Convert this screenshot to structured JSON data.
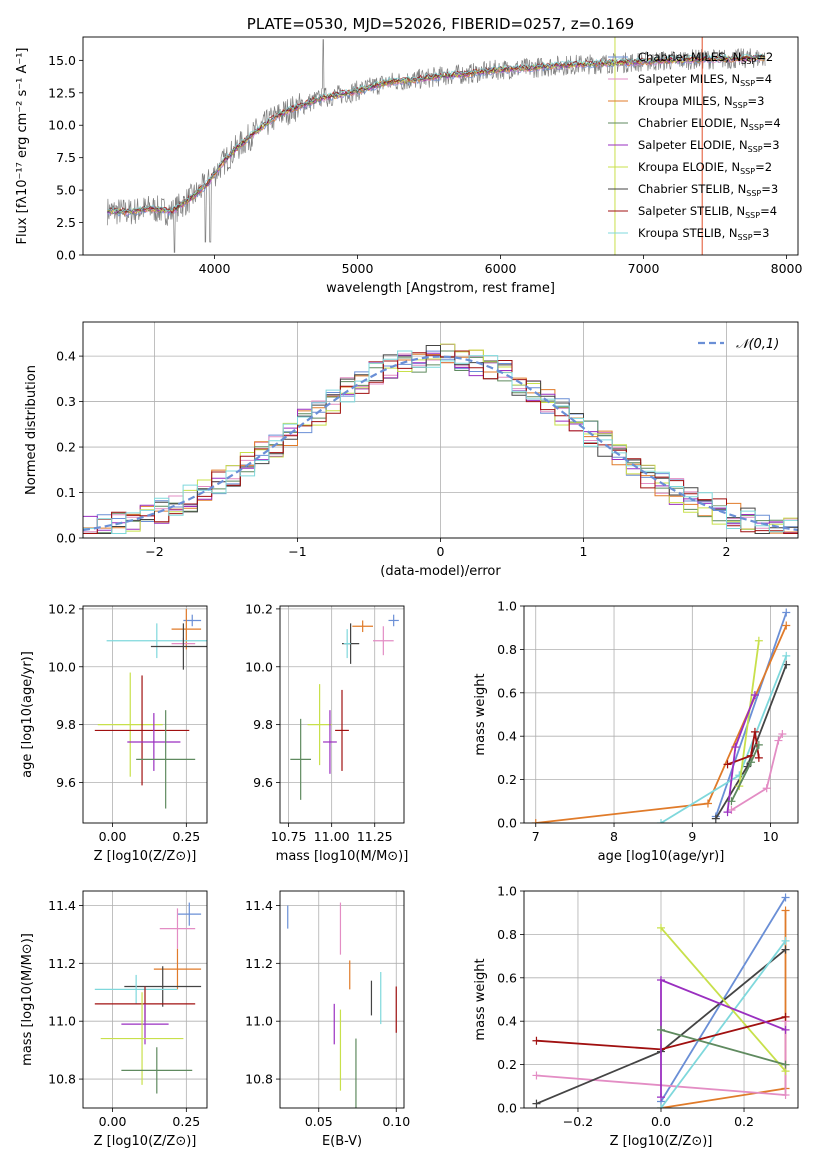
{
  "palette": [
    "#6a8fd6",
    "#e07b2a",
    "#2f9e3a",
    "#d04040",
    "#9a5fc0",
    "#8c5a48",
    "#e38dc4",
    "#808080",
    "#c8d64b",
    "#5fcad6"
  ],
  "chart_data": [
    {
      "id": "spectrum",
      "type": "line",
      "title": "PLATE=0530, MJD=52026, FIBERID=0257, z=0.169",
      "xlabel": "wavelength [Angstrom, rest frame]",
      "ylabel": "Flux [fλ10⁻¹⁷ erg cm⁻² s⁻¹ A⁻¹]",
      "xlim": [
        3080,
        8080
      ],
      "ylim": [
        0,
        16.8
      ],
      "xticks": [
        4000,
        5000,
        6000,
        7000,
        8000
      ],
      "yticks": [
        0.0,
        2.5,
        5.0,
        7.5,
        10.0,
        12.5,
        15.0
      ],
      "grid": false,
      "legend_position": "upper right",
      "legend": [
        {
          "label": "Chabrier MILES, N_SSP=2",
          "color": "#6a8fd6"
        },
        {
          "label": "Salpeter MILES, N_SSP=4",
          "color": "#e38dc4"
        },
        {
          "label": "Kroupa MILES, N_SSP=3",
          "color": "#e07b2a"
        },
        {
          "label": "Chabrier ELODIE, N_SSP=4",
          "color": "#5f8a5f"
        },
        {
          "label": "Salpeter ELODIE, N_SSP=3",
          "color": "#9a2fc0"
        },
        {
          "label": "Kroupa ELODIE, N_SSP=2",
          "color": "#c8e04b"
        },
        {
          "label": "Chabrier STELIB, N_SSP=3",
          "color": "#444444"
        },
        {
          "label": "Salpeter STELIB, N_SSP=4",
          "color": "#a01010"
        },
        {
          "label": "Kroupa STELIB, N_SSP=3",
          "color": "#7fd8dc"
        }
      ],
      "model_x": [
        3250,
        3400,
        3550,
        3700,
        3850,
        3950,
        4050,
        4150,
        4300,
        4450,
        4600,
        4750,
        4900,
        5050,
        5200,
        5400,
        5600,
        5800,
        6000,
        6200,
        6400,
        6600,
        6800,
        7000,
        7200,
        7400,
        7600,
        7850
      ],
      "model_y": [
        3.4,
        3.3,
        3.6,
        3.3,
        4.5,
        5.5,
        7.0,
        8.2,
        9.6,
        10.8,
        11.5,
        12.1,
        12.4,
        12.8,
        13.3,
        13.5,
        13.8,
        14.0,
        14.3,
        14.4,
        14.6,
        14.7,
        14.8,
        14.9,
        15.0,
        15.1,
        15.1,
        15.2
      ]
    },
    {
      "id": "residuals",
      "type": "histogram",
      "xlabel": "(data-model)/error",
      "ylabel": "Normed distribution",
      "xlim": [
        -2.5,
        2.5
      ],
      "ylim": [
        0,
        0.475
      ],
      "xticks": [
        -2,
        -1,
        0,
        1,
        2
      ],
      "yticks": [
        0.0,
        0.1,
        0.2,
        0.3,
        0.4
      ],
      "grid": true,
      "legend_position": "upper right",
      "legend": [
        {
          "label": "𝒩(0,1)",
          "color": "#6a8fd6",
          "style": "dashed"
        }
      ],
      "curve": "N(0,1)"
    },
    {
      "id": "age_vs_Z",
      "type": "errorbar",
      "xlabel": "Z [log10(Z/Z⊙)]",
      "ylabel": "age [log10(age/yr)]",
      "xlim": [
        -0.1,
        0.32
      ],
      "ylim": [
        9.46,
        10.21
      ],
      "xticks": [
        0.0,
        0.25
      ],
      "yticks": [
        9.6,
        9.8,
        10.0,
        10.2
      ],
      "grid": true,
      "points": [
        {
          "x": 0.27,
          "y": 10.16,
          "xerr": 0.03,
          "yerr": 0.02,
          "color": "#6a8fd6"
        },
        {
          "x": 0.25,
          "y": 10.13,
          "xerr": 0.05,
          "yerr": 0.07,
          "color": "#e07b2a"
        },
        {
          "x": 0.15,
          "y": 10.09,
          "xerr": 0.17,
          "yerr": 0.06,
          "color": "#7fd8dc"
        },
        {
          "x": 0.24,
          "y": 10.08,
          "xerr": 0.04,
          "yerr": 0.02,
          "color": "#e38dc4"
        },
        {
          "x": 0.24,
          "y": 10.07,
          "xerr": 0.11,
          "yerr": 0.08,
          "color": "#444444"
        },
        {
          "x": 0.06,
          "y": 9.8,
          "xerr": 0.11,
          "yerr": 0.18,
          "color": "#c8e04b"
        },
        {
          "x": 0.1,
          "y": 9.78,
          "xerr": 0.16,
          "yerr": 0.19,
          "color": "#a01010"
        },
        {
          "x": 0.14,
          "y": 9.74,
          "xerr": 0.09,
          "yerr": 0.1,
          "color": "#9a2fc0"
        },
        {
          "x": 0.18,
          "y": 9.68,
          "xerr": 0.1,
          "yerr": 0.17,
          "color": "#5f8a5f"
        }
      ]
    },
    {
      "id": "age_vs_mass",
      "type": "errorbar",
      "xlabel": "mass [log10(M/M⊙)]",
      "ylabel": "",
      "xlim": [
        10.7,
        11.42
      ],
      "ylim": [
        9.46,
        10.21
      ],
      "xticks": [
        10.75,
        11.0,
        11.25
      ],
      "yticks": [
        9.6,
        9.8,
        10.0,
        10.2
      ],
      "grid": true,
      "points": [
        {
          "x": 11.36,
          "y": 10.16,
          "xerr": 0.03,
          "yerr": 0.02,
          "color": "#6a8fd6"
        },
        {
          "x": 11.18,
          "y": 10.14,
          "xerr": 0.06,
          "yerr": 0.02,
          "color": "#e07b2a"
        },
        {
          "x": 11.3,
          "y": 10.09,
          "xerr": 0.06,
          "yerr": 0.05,
          "color": "#e38dc4"
        },
        {
          "x": 11.11,
          "y": 10.08,
          "xerr": 0.05,
          "yerr": 0.07,
          "color": "#444444"
        },
        {
          "x": 11.09,
          "y": 10.08,
          "xerr": 0.02,
          "yerr": 0.05,
          "color": "#7fd8dc"
        },
        {
          "x": 10.93,
          "y": 9.8,
          "xerr": 0.07,
          "yerr": 0.14,
          "color": "#c8e04b"
        },
        {
          "x": 11.06,
          "y": 9.78,
          "xerr": 0.04,
          "yerr": 0.14,
          "color": "#a01010"
        },
        {
          "x": 10.99,
          "y": 9.74,
          "xerr": 0.04,
          "yerr": 0.11,
          "color": "#9a2fc0"
        },
        {
          "x": 10.82,
          "y": 9.68,
          "xerr": 0.06,
          "yerr": 0.14,
          "color": "#5f8a5f"
        }
      ]
    },
    {
      "id": "weight_vs_age",
      "type": "line",
      "xlabel": "age [log10(age/yr)]",
      "ylabel": "mass weight",
      "xlim": [
        6.85,
        10.35
      ],
      "ylim": [
        0,
        1
      ],
      "xticks": [
        7,
        8,
        9,
        10
      ],
      "yticks": [
        0.0,
        0.2,
        0.4,
        0.6,
        0.8,
        1.0
      ],
      "grid": true,
      "series": [
        {
          "color": "#6a8fd6",
          "x": [
            9.3,
            10.2
          ],
          "y": [
            0.03,
            0.97
          ]
        },
        {
          "color": "#e07b2a",
          "x": [
            7.0,
            9.2,
            10.2
          ],
          "y": [
            0.0,
            0.09,
            0.91
          ]
        },
        {
          "color": "#e38dc4",
          "x": [
            9.5,
            9.95,
            10.1,
            10.15
          ],
          "y": [
            0.06,
            0.16,
            0.38,
            0.41
          ]
        },
        {
          "color": "#444444",
          "x": [
            9.3,
            9.7,
            10.2
          ],
          "y": [
            0.02,
            0.26,
            0.73
          ]
        },
        {
          "color": "#7fd8dc",
          "x": [
            8.6,
            9.6,
            10.2
          ],
          "y": [
            0.0,
            0.22,
            0.77
          ]
        },
        {
          "color": "#c8e04b",
          "x": [
            9.6,
            9.85
          ],
          "y": [
            0.17,
            0.84
          ]
        },
        {
          "color": "#a01010",
          "x": [
            9.45,
            9.75,
            9.8,
            9.85
          ],
          "y": [
            0.27,
            0.31,
            0.42,
            0.3
          ]
        },
        {
          "color": "#9a2fc0",
          "x": [
            9.45,
            9.55,
            9.8
          ],
          "y": [
            0.05,
            0.35,
            0.59
          ]
        },
        {
          "color": "#5f8a5f",
          "x": [
            9.5,
            9.75,
            9.85
          ],
          "y": [
            0.1,
            0.28,
            0.36
          ]
        }
      ]
    },
    {
      "id": "mass_vs_Z",
      "type": "errorbar",
      "xlabel": "Z [log10(Z/Z⊙)]",
      "ylabel": "mass [log10(M/M⊙)]",
      "xlim": [
        -0.1,
        0.32
      ],
      "ylim": [
        10.7,
        11.45
      ],
      "xticks": [
        0.0,
        0.25
      ],
      "yticks": [
        10.8,
        11.0,
        11.2,
        11.4
      ],
      "grid": true,
      "points": [
        {
          "x": 0.26,
          "y": 11.37,
          "xerr": 0.04,
          "yerr": 0.04,
          "color": "#6a8fd6"
        },
        {
          "x": 0.22,
          "y": 11.32,
          "xerr": 0.06,
          "yerr": 0.07,
          "color": "#e38dc4"
        },
        {
          "x": 0.22,
          "y": 11.18,
          "xerr": 0.08,
          "yerr": 0.07,
          "color": "#e07b2a"
        },
        {
          "x": 0.17,
          "y": 11.12,
          "xerr": 0.13,
          "yerr": 0.07,
          "color": "#444444"
        },
        {
          "x": 0.08,
          "y": 11.11,
          "xerr": 0.14,
          "yerr": 0.05,
          "color": "#7fd8dc"
        },
        {
          "x": 0.11,
          "y": 11.06,
          "xerr": 0.17,
          "yerr": 0.06,
          "color": "#a01010"
        },
        {
          "x": 0.11,
          "y": 10.99,
          "xerr": 0.08,
          "yerr": 0.07,
          "color": "#9a2fc0"
        },
        {
          "x": 0.1,
          "y": 10.94,
          "xerr": 0.14,
          "yerr": 0.16,
          "color": "#c8e04b"
        },
        {
          "x": 0.15,
          "y": 10.83,
          "xerr": 0.12,
          "yerr": 0.08,
          "color": "#5f8a5f"
        }
      ]
    },
    {
      "id": "mass_vs_ebv",
      "type": "errorbar",
      "xlabel": "E(B-V)",
      "ylabel": "",
      "xlim": [
        0.025,
        0.105
      ],
      "ylim": [
        10.7,
        11.45
      ],
      "xticks": [
        0.05,
        0.1
      ],
      "yticks": [
        10.8,
        11.0,
        11.2,
        11.4
      ],
      "grid": true,
      "points": [
        {
          "x": 0.03,
          "y": 11.36,
          "xerr": 0,
          "yerr": 0.04,
          "color": "#6a8fd6"
        },
        {
          "x": 0.064,
          "y": 11.32,
          "xerr": 0,
          "yerr": 0.09,
          "color": "#e38dc4"
        },
        {
          "x": 0.07,
          "y": 11.16,
          "xerr": 0,
          "yerr": 0.05,
          "color": "#e07b2a"
        },
        {
          "x": 0.084,
          "y": 11.08,
          "xerr": 0,
          "yerr": 0.06,
          "color": "#444444"
        },
        {
          "x": 0.09,
          "y": 11.08,
          "xerr": 0,
          "yerr": 0.09,
          "color": "#7fd8dc"
        },
        {
          "x": 0.1,
          "y": 11.04,
          "xerr": 0,
          "yerr": 0.08,
          "color": "#a01010"
        },
        {
          "x": 0.06,
          "y": 10.99,
          "xerr": 0,
          "yerr": 0.07,
          "color": "#9a2fc0"
        },
        {
          "x": 0.064,
          "y": 10.9,
          "xerr": 0,
          "yerr": 0.14,
          "color": "#c8e04b"
        },
        {
          "x": 0.074,
          "y": 10.82,
          "xerr": 0,
          "yerr": 0.12,
          "color": "#5f8a5f"
        }
      ]
    },
    {
      "id": "weight_vs_Z",
      "type": "line",
      "xlabel": "Z [log10(Z/Z⊙)]",
      "ylabel": "mass weight",
      "xlim": [
        -0.33,
        0.33
      ],
      "ylim": [
        0,
        1
      ],
      "xticks": [
        -0.2,
        0.0,
        0.2
      ],
      "yticks": [
        0.0,
        0.2,
        0.4,
        0.6,
        0.8,
        1.0
      ],
      "grid": true,
      "series": [
        {
          "color": "#6a8fd6",
          "x": [
            0.0,
            0.3
          ],
          "y": [
            0.03,
            0.97
          ]
        },
        {
          "color": "#e07b2a",
          "x": [
            0.0,
            0.3,
            0.3
          ],
          "y": [
            0.0,
            0.09,
            0.91
          ]
        },
        {
          "color": "#e38dc4",
          "x": [
            -0.3,
            0.3,
            0.3
          ],
          "y": [
            0.15,
            0.06,
            0.4
          ]
        },
        {
          "color": "#444444",
          "x": [
            -0.3,
            0.0,
            0.3
          ],
          "y": [
            0.02,
            0.26,
            0.73
          ]
        },
        {
          "color": "#7fd8dc",
          "x": [
            0.0,
            0.3
          ],
          "y": [
            0.0,
            0.77
          ]
        },
        {
          "color": "#c8e04b",
          "x": [
            0.0,
            0.3
          ],
          "y": [
            0.83,
            0.17
          ]
        },
        {
          "color": "#a01010",
          "x": [
            -0.3,
            0.0,
            0.3
          ],
          "y": [
            0.31,
            0.27,
            0.42
          ]
        },
        {
          "color": "#9a2fc0",
          "x": [
            0.0,
            0.0,
            0.3
          ],
          "y": [
            0.05,
            0.59,
            0.36
          ]
        },
        {
          "color": "#5f8a5f",
          "x": [
            0.0,
            0.3
          ],
          "y": [
            0.36,
            0.2
          ]
        }
      ]
    }
  ]
}
